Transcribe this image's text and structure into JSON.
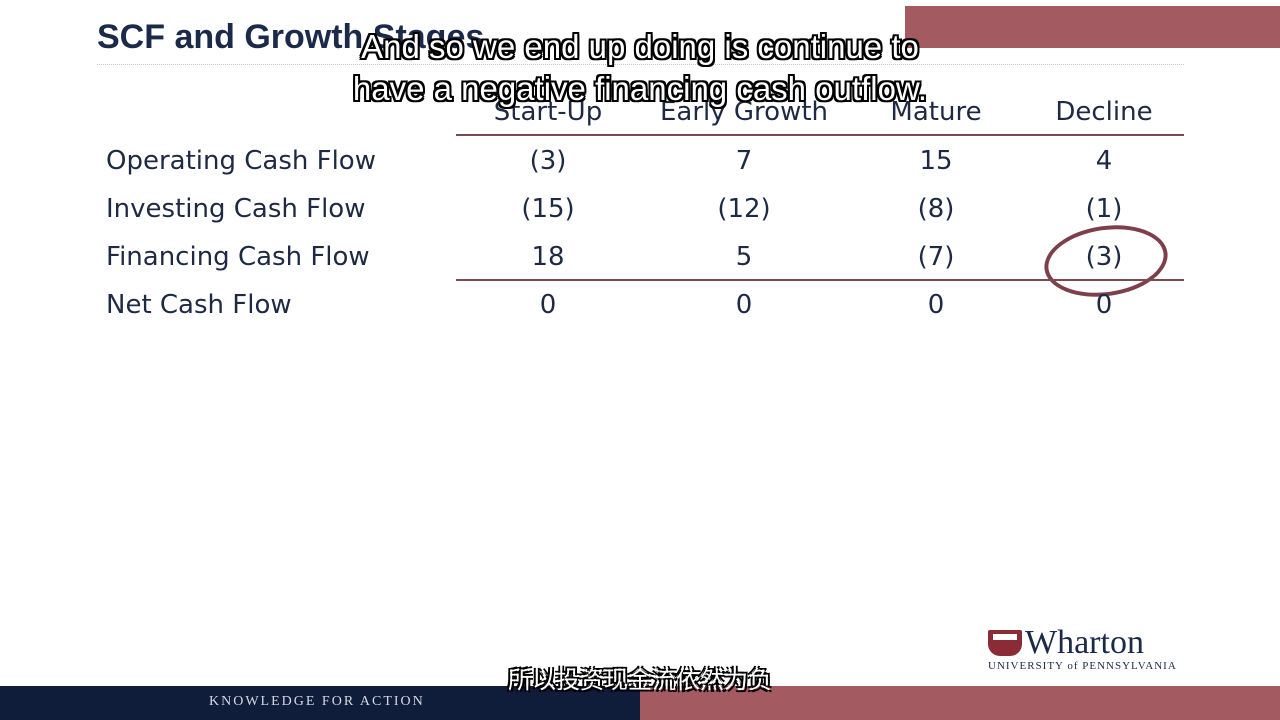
{
  "slide": {
    "title": "SCF and Growth Stages",
    "columns": [
      "Start-Up",
      "Early Growth",
      "Mature",
      "Decline"
    ],
    "rows": [
      {
        "label": "Operating Cash Flow",
        "values": [
          "(3)",
          "7",
          "15",
          "4"
        ]
      },
      {
        "label": "Investing Cash Flow",
        "values": [
          "(15)",
          "(12)",
          "(8)",
          "(1)"
        ]
      },
      {
        "label": "Financing Cash Flow",
        "values": [
          "18",
          "5",
          "(7)",
          "(3)"
        ]
      },
      {
        "label": "Net Cash Flow",
        "values": [
          "0",
          "0",
          "0",
          "0"
        ]
      }
    ]
  },
  "subtitles": {
    "english_line1": "And so we end up doing is continue to",
    "english_line2": "have a negative financing cash outflow.",
    "chinese": "所以投资现金流依然为负"
  },
  "branding": {
    "logo_word": "Wharton",
    "logo_sub": "UNIVERSITY of PENNSYLVANIA",
    "footer_tagline": "KNOWLEDGE FOR ACTION"
  },
  "colors": {
    "navy": "#0f1c3a",
    "maroon": "#a35b61",
    "text": "#1e2a44"
  }
}
